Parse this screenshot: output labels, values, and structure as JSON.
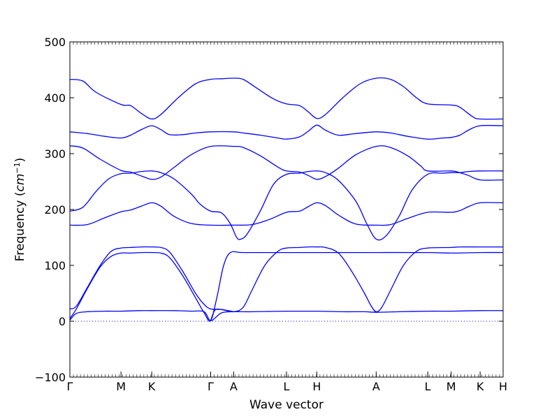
{
  "chart_data": {
    "type": "line",
    "title": "",
    "xlabel": "Wave vector",
    "ylabel": "Frequency",
    "ylabel_unit_math": "cm",
    "ylabel_unit_exp": "−1",
    "ylim": [
      -100,
      500
    ],
    "yticks": [
      -100,
      0,
      100,
      200,
      300,
      400,
      500
    ],
    "xlim": [
      0,
      100
    ],
    "grid": false,
    "x_ticks": [
      {
        "label": "Γ",
        "x": 0
      },
      {
        "label": "M",
        "x": 11.8
      },
      {
        "label": "K",
        "x": 18.9
      },
      {
        "label": "Γ",
        "x": 32.5
      },
      {
        "label": "A",
        "x": 37.8
      },
      {
        "label": "L",
        "x": 50.0
      },
      {
        "label": "H",
        "x": 57.0
      },
      {
        "label": "A",
        "x": 70.7
      },
      {
        "label": "L",
        "x": 82.6
      },
      {
        "label": "M",
        "x": 88.0
      },
      {
        "label": "K",
        "x": 94.7
      },
      {
        "label": "H",
        "x": 100
      }
    ],
    "series": [
      {
        "values": [
          [
            0,
            433
          ],
          [
            3,
            430
          ],
          [
            6,
            410
          ],
          [
            11.8,
            388
          ],
          [
            14,
            386
          ],
          [
            16.5,
            372
          ],
          [
            18.9,
            362
          ],
          [
            21,
            370
          ],
          [
            25,
            400
          ],
          [
            29,
            425
          ],
          [
            32.5,
            433
          ],
          [
            35,
            434
          ],
          [
            37.8,
            435
          ],
          [
            40,
            433
          ],
          [
            43,
            418
          ],
          [
            47,
            398
          ],
          [
            50,
            389
          ],
          [
            53,
            386
          ],
          [
            55,
            375
          ],
          [
            57,
            363
          ],
          [
            59,
            370
          ],
          [
            63,
            400
          ],
          [
            67,
            425
          ],
          [
            70.7,
            435
          ],
          [
            74,
            433
          ],
          [
            77,
            420
          ],
          [
            80,
            400
          ],
          [
            82.6,
            389
          ],
          [
            88,
            387
          ],
          [
            90,
            383
          ],
          [
            93,
            366
          ],
          [
            94.7,
            362
          ],
          [
            100,
            362
          ]
        ]
      },
      {
        "values": [
          [
            0,
            339
          ],
          [
            4,
            336
          ],
          [
            8,
            331
          ],
          [
            11.8,
            328
          ],
          [
            14,
            333
          ],
          [
            16.5,
            343
          ],
          [
            18.9,
            350
          ],
          [
            21,
            343
          ],
          [
            23,
            334
          ],
          [
            26,
            334
          ],
          [
            29,
            337
          ],
          [
            32.5,
            339
          ],
          [
            37.8,
            339
          ],
          [
            40,
            337
          ],
          [
            44,
            333
          ],
          [
            48,
            328
          ],
          [
            50,
            326
          ],
          [
            53,
            330
          ],
          [
            55,
            340
          ],
          [
            57,
            351
          ],
          [
            59,
            342
          ],
          [
            62,
            333
          ],
          [
            66,
            336
          ],
          [
            70.7,
            339
          ],
          [
            74,
            337
          ],
          [
            78,
            331
          ],
          [
            82.6,
            326
          ],
          [
            86,
            328
          ],
          [
            88,
            329
          ],
          [
            90,
            333
          ],
          [
            92,
            342
          ],
          [
            94.7,
            350
          ],
          [
            100,
            350
          ]
        ]
      },
      {
        "values": [
          [
            0,
            314
          ],
          [
            3,
            310
          ],
          [
            7,
            290
          ],
          [
            11.8,
            270
          ],
          [
            14,
            267
          ],
          [
            16.5,
            260
          ],
          [
            18.9,
            254
          ],
          [
            21,
            258
          ],
          [
            24,
            275
          ],
          [
            28,
            298
          ],
          [
            32.5,
            313
          ],
          [
            37.8,
            313
          ],
          [
            40,
            311
          ],
          [
            44,
            296
          ],
          [
            48,
            276
          ],
          [
            50,
            269
          ],
          [
            53,
            267
          ],
          [
            55,
            261
          ],
          [
            57,
            254
          ],
          [
            59,
            259
          ],
          [
            62,
            274
          ],
          [
            66,
            298
          ],
          [
            70.7,
            313
          ],
          [
            74,
            311
          ],
          [
            78,
            296
          ],
          [
            81,
            278
          ],
          [
            82.6,
            269
          ],
          [
            88,
            269
          ],
          [
            90,
            266
          ],
          [
            92,
            261
          ],
          [
            94.7,
            253
          ],
          [
            100,
            253
          ]
        ]
      },
      {
        "values": [
          [
            0,
            197
          ],
          [
            3,
            204
          ],
          [
            6,
            232
          ],
          [
            9,
            255
          ],
          [
            11.8,
            264
          ],
          [
            14,
            265
          ],
          [
            16.5,
            268
          ],
          [
            18.9,
            269
          ],
          [
            21,
            266
          ],
          [
            24,
            255
          ],
          [
            28,
            228
          ],
          [
            30,
            210
          ],
          [
            32.5,
            197
          ],
          [
            35,
            194
          ],
          [
            37,
            175
          ],
          [
            38.5,
            150
          ],
          [
            39.5,
            147
          ],
          [
            41,
            157
          ],
          [
            44,
            198
          ],
          [
            47,
            245
          ],
          [
            50,
            263
          ],
          [
            53,
            265
          ],
          [
            55,
            268
          ],
          [
            57,
            269
          ],
          [
            59,
            266
          ],
          [
            62,
            252
          ],
          [
            66,
            215
          ],
          [
            68.5,
            175
          ],
          [
            70.7,
            147
          ],
          [
            73,
            153
          ],
          [
            76,
            188
          ],
          [
            79,
            235
          ],
          [
            82.6,
            263
          ],
          [
            86,
            265
          ],
          [
            88,
            266
          ],
          [
            90,
            266
          ],
          [
            92,
            268
          ],
          [
            94.7,
            269
          ],
          [
            100,
            269
          ]
        ]
      },
      {
        "values": [
          [
            0,
            172
          ],
          [
            4,
            173
          ],
          [
            8,
            185
          ],
          [
            11.8,
            196
          ],
          [
            14,
            199
          ],
          [
            16.5,
            206
          ],
          [
            18.9,
            212
          ],
          [
            21,
            206
          ],
          [
            24,
            188
          ],
          [
            28,
            175
          ],
          [
            32.5,
            172
          ],
          [
            37.8,
            172
          ],
          [
            42,
            173
          ],
          [
            46,
            182
          ],
          [
            50,
            195
          ],
          [
            53,
            197
          ],
          [
            55,
            205
          ],
          [
            57,
            212
          ],
          [
            59,
            207
          ],
          [
            62,
            190
          ],
          [
            66,
            174
          ],
          [
            70.7,
            172
          ],
          [
            74,
            173
          ],
          [
            78,
            184
          ],
          [
            82.6,
            195
          ],
          [
            88,
            195
          ],
          [
            90,
            198
          ],
          [
            92,
            205
          ],
          [
            94.7,
            212
          ],
          [
            100,
            212
          ]
        ]
      },
      {
        "values": [
          [
            0,
            22
          ],
          [
            1.5,
            27
          ],
          [
            4,
            60
          ],
          [
            7,
            100
          ],
          [
            9.5,
            125
          ],
          [
            11.8,
            131
          ],
          [
            14,
            132
          ],
          [
            16.5,
            133
          ],
          [
            18.9,
            133
          ],
          [
            21,
            132
          ],
          [
            23,
            124
          ],
          [
            26,
            90
          ],
          [
            29,
            50
          ],
          [
            31,
            30
          ],
          [
            32.5,
            22
          ],
          [
            35,
            21
          ],
          [
            37.8,
            17
          ],
          [
            40,
            25
          ],
          [
            42,
            55
          ],
          [
            45,
            100
          ],
          [
            48,
            125
          ],
          [
            50,
            131
          ],
          [
            53,
            132
          ],
          [
            55,
            133
          ],
          [
            57,
            133
          ],
          [
            59,
            132
          ],
          [
            62,
            122
          ],
          [
            65,
            90
          ],
          [
            68,
            50
          ],
          [
            69.5,
            28
          ],
          [
            70.7,
            17
          ],
          [
            72,
            25
          ],
          [
            74,
            55
          ],
          [
            77,
            100
          ],
          [
            80,
            125
          ],
          [
            82.6,
            131
          ],
          [
            88,
            132
          ],
          [
            90,
            133
          ],
          [
            94.7,
            133
          ],
          [
            100,
            133
          ]
        ]
      },
      {
        "values": [
          [
            0,
            5
          ],
          [
            1.5,
            22
          ],
          [
            4,
            58
          ],
          [
            7,
            97
          ],
          [
            9.5,
            116
          ],
          [
            11.8,
            122
          ],
          [
            14,
            122
          ],
          [
            16.5,
            123
          ],
          [
            18.9,
            123
          ],
          [
            21,
            122
          ],
          [
            23,
            114
          ],
          [
            26,
            82
          ],
          [
            29,
            42
          ],
          [
            31,
            15
          ],
          [
            32.5,
            1
          ],
          [
            34,
            45
          ],
          [
            35.5,
            100
          ],
          [
            37.1,
            123
          ],
          [
            40,
            123
          ],
          [
            50,
            123
          ],
          [
            57,
            123
          ],
          [
            70.7,
            123
          ],
          [
            82.6,
            123
          ],
          [
            88,
            122
          ],
          [
            94.7,
            123
          ],
          [
            100,
            123
          ]
        ]
      },
      {
        "values": [
          [
            0,
            2
          ],
          [
            1.5,
            14
          ],
          [
            4,
            17
          ],
          [
            8,
            18
          ],
          [
            11.8,
            18
          ],
          [
            16,
            19
          ],
          [
            18.9,
            19
          ],
          [
            24,
            19
          ],
          [
            28,
            18
          ],
          [
            31,
            17
          ],
          [
            32.5,
            1
          ],
          [
            35,
            15
          ],
          [
            37.8,
            17
          ],
          [
            42,
            17
          ],
          [
            50,
            18
          ],
          [
            57,
            18
          ],
          [
            63,
            17
          ],
          [
            68,
            17
          ],
          [
            70.7,
            16
          ],
          [
            76,
            17
          ],
          [
            82.6,
            18
          ],
          [
            88,
            18
          ],
          [
            94.7,
            19
          ],
          [
            100,
            19
          ]
        ]
      },
      {
        "values": [
          [
            32.5,
            1
          ],
          [
            33.5,
            20
          ],
          [
            35,
            21
          ],
          [
            36.5,
            19
          ],
          [
            37.8,
            17
          ]
        ]
      }
    ]
  }
}
